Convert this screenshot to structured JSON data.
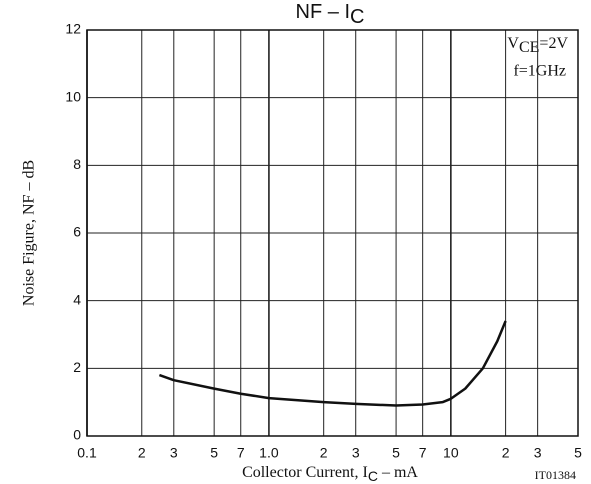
{
  "chart_data": {
    "type": "line",
    "title": {
      "main": "NF – I",
      "sub": "C"
    },
    "x_label": {
      "main": "Collector Current, I",
      "sub": "C",
      "tail": " – mA"
    },
    "y_label": "Noise Figure, NF – dB",
    "annotations": {
      "vce": {
        "main": "V",
        "sub": "CE",
        "tail": "=2V"
      },
      "freq": "f=1GHz"
    },
    "figure_code": "IT01384",
    "x_log": true,
    "grid": true,
    "color": "#111111",
    "xlim": [
      0.1,
      50
    ],
    "ylim": [
      0,
      12
    ],
    "xticks": [
      0.1,
      {
        "value": 0.2,
        "label": "2"
      },
      {
        "value": 0.3,
        "label": "3"
      },
      {
        "value": 0.5,
        "label": "5"
      },
      {
        "value": 0.7,
        "label": "7"
      },
      {
        "value": 1,
        "label": "1.0"
      },
      {
        "value": 2,
        "label": "2"
      },
      {
        "value": 3,
        "label": "3"
      },
      {
        "value": 5,
        "label": "5"
      },
      {
        "value": 7,
        "label": "7"
      },
      10,
      {
        "value": 20,
        "label": "2"
      },
      {
        "value": 30,
        "label": "3"
      },
      {
        "value": 50,
        "label": "5"
      }
    ],
    "yticks": [
      0,
      2,
      4,
      6,
      8,
      10,
      12
    ],
    "x": [
      0.25,
      0.3,
      0.5,
      0.7,
      1,
      2,
      3,
      5,
      7,
      9,
      10,
      12,
      15,
      18,
      20
    ],
    "values": [
      1.8,
      1.65,
      1.4,
      1.25,
      1.12,
      1.0,
      0.95,
      0.9,
      0.93,
      1.0,
      1.1,
      1.4,
      2.0,
      2.8,
      3.4
    ]
  }
}
